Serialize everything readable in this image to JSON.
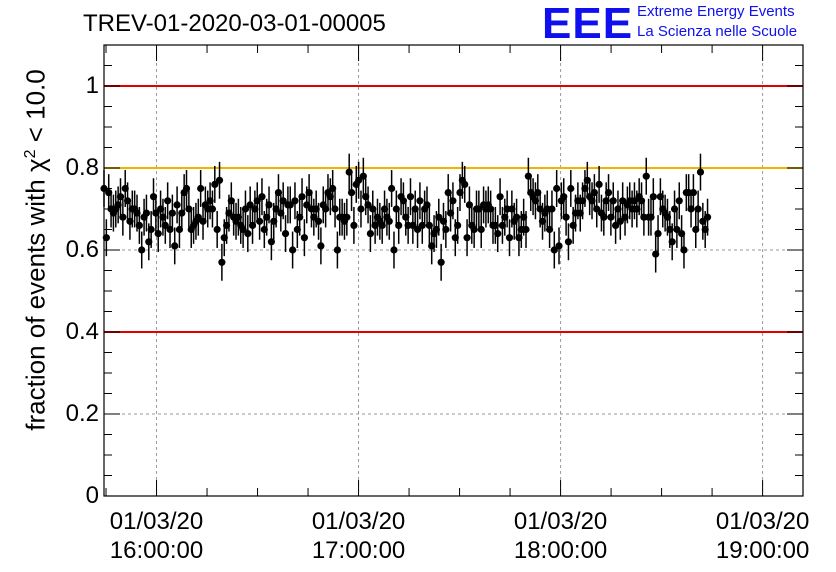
{
  "title": "TREV-01-2020-03-01-00005",
  "logo": {
    "mark": "EEE",
    "line1": "Extreme Energy Events",
    "line2": "La Scienza nelle Scuole"
  },
  "chart_data": {
    "type": "scatter",
    "title": "TREV-01-2020-03-01-00005",
    "ylabel_prefix": "fraction of events with χ",
    "ylabel_sup": "2",
    "ylabel_suffix": " < 10.0",
    "xlabel": "",
    "ylim": [
      0,
      1.1
    ],
    "xlim_hours": [
      15.74,
      19.2
    ],
    "y_ticks": [
      "0",
      "0.2",
      "0.4",
      "0.6",
      "0.8",
      "1"
    ],
    "x_ticks": [
      {
        "hour": 16,
        "date": "01/03/20",
        "time": "16:00:00"
      },
      {
        "hour": 17,
        "date": "01/03/20",
        "time": "17:00:00"
      },
      {
        "hour": 18,
        "date": "01/03/20",
        "time": "18:00:00"
      },
      {
        "hour": 19,
        "date": "01/03/20",
        "time": "19:00:00"
      }
    ],
    "grid": true,
    "reference_lines": [
      {
        "y": 1.0,
        "color": "#e00000"
      },
      {
        "y": 0.8,
        "color": "#f0b400"
      },
      {
        "y": 0.4,
        "color": "#e00000"
      }
    ],
    "marker_color": "#000000",
    "error": 0.045,
    "series": [
      {
        "x_start_hour": 15.74,
        "x_step_hour": 0.01167,
        "values": [
          0.75,
          0.63,
          0.74,
          0.7,
          0.69,
          0.7,
          0.71,
          0.73,
          0.68,
          0.75,
          0.72,
          0.67,
          0.7,
          0.7,
          0.69,
          0.66,
          0.6,
          0.68,
          0.69,
          0.62,
          0.65,
          0.73,
          0.69,
          0.64,
          0.7,
          0.68,
          0.66,
          0.72,
          0.65,
          0.69,
          0.61,
          0.71,
          0.65,
          0.69,
          0.74,
          0.75,
          0.7,
          0.65,
          0.66,
          0.67,
          0.68,
          0.75,
          0.67,
          0.71,
          0.7,
          0.72,
          0.7,
          0.76,
          0.65,
          0.77,
          0.57,
          0.63,
          0.66,
          0.69,
          0.72,
          0.68,
          0.67,
          0.68,
          0.66,
          0.65,
          0.7,
          0.64,
          0.71,
          0.66,
          0.7,
          0.72,
          0.67,
          0.73,
          0.65,
          0.68,
          0.71,
          0.62,
          0.67,
          0.7,
          0.74,
          0.69,
          0.72,
          0.64,
          0.71,
          0.71,
          0.6,
          0.72,
          0.65,
          0.68,
          0.73,
          0.63,
          0.71,
          0.74,
          0.7,
          0.68,
          0.7,
          0.67,
          0.61,
          0.71,
          0.7,
          0.74,
          0.73,
          0.75,
          0.7,
          0.6,
          0.68,
          0.68,
          0.67,
          0.68,
          0.79,
          0.74,
          0.66,
          0.76,
          0.77,
          0.7,
          0.78,
          0.73,
          0.71,
          0.64,
          0.7,
          0.66,
          0.68,
          0.67,
          0.66,
          0.7,
          0.68,
          0.67,
          0.75,
          0.6,
          0.7,
          0.66,
          0.73,
          0.72,
          0.68,
          0.66,
          0.73,
          0.66,
          0.7,
          0.65,
          0.72,
          0.66,
          0.7,
          0.71,
          0.66,
          0.61,
          0.64,
          0.65,
          0.68,
          0.57,
          0.67,
          0.65,
          0.74,
          0.69,
          0.72,
          0.63,
          0.66,
          0.74,
          0.77,
          0.76,
          0.63,
          0.71,
          0.66,
          0.65,
          0.7,
          0.7,
          0.65,
          0.71,
          0.7,
          0.71,
          0.7,
          0.66,
          0.66,
          0.64,
          0.73,
          0.66,
          0.68,
          0.7,
          0.63,
          0.7,
          0.67,
          0.68,
          0.63,
          0.65,
          0.68,
          0.65,
          0.78,
          0.74,
          0.73,
          0.72,
          0.74,
          0.7,
          0.67,
          0.69,
          0.7,
          0.65,
          0.7,
          0.6,
          0.75,
          0.61,
          0.72,
          0.73,
          0.68,
          0.62,
          0.75,
          0.66,
          0.69,
          0.72,
          0.69,
          0.72,
          0.75,
          0.77,
          0.73,
          0.72,
          0.74,
          0.7,
          0.76,
          0.69,
          0.68,
          0.72,
          0.74,
          0.68,
          0.72,
          0.66,
          0.7,
          0.67,
          0.72,
          0.68,
          0.71,
          0.72,
          0.7,
          0.72,
          0.7,
          0.73,
          0.72,
          0.68,
          0.78,
          0.68,
          0.68,
          0.73,
          0.59,
          0.64,
          0.73,
          0.7,
          0.69,
          0.68,
          0.65,
          0.62,
          0.7,
          0.65,
          0.72,
          0.64,
          0.6,
          0.74,
          0.74,
          0.7,
          0.74,
          0.65,
          0.7,
          0.79,
          0.67,
          0.65,
          0.68
        ]
      }
    ]
  }
}
